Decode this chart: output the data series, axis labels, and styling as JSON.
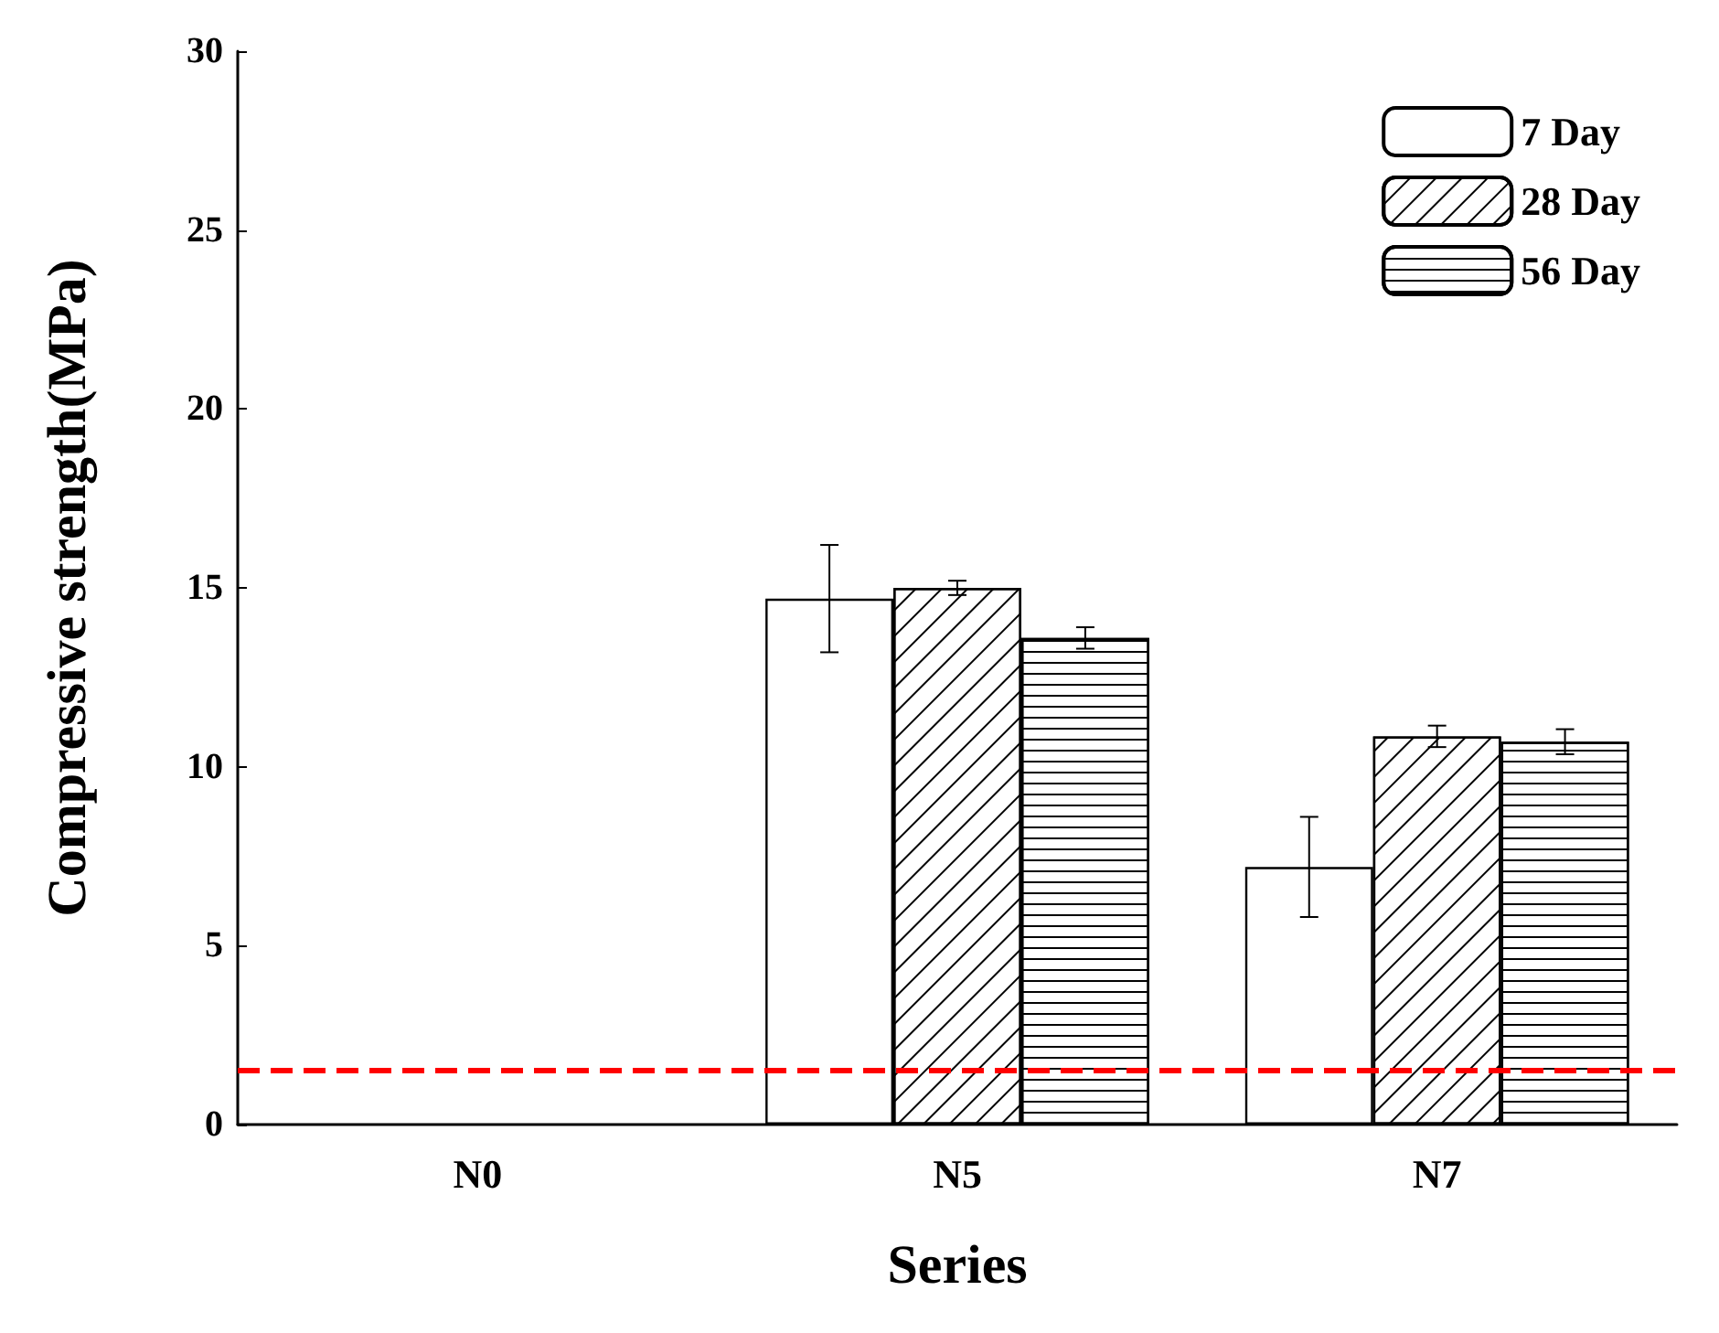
{
  "chart_data": {
    "type": "bar",
    "xlabel": "Series",
    "ylabel": "Compressive strength(MPa)",
    "categories": [
      "N0",
      "N5",
      "N7"
    ],
    "series": [
      {
        "name": "7 Day",
        "color": "#ffffff",
        "values": [
          null,
          14.7,
          7.2
        ],
        "errors": [
          null,
          1.5,
          1.4
        ]
      },
      {
        "name": "28 Day",
        "color": "#ffffff",
        "values": [
          null,
          15.0,
          10.85
        ],
        "errors": [
          null,
          0.2,
          0.3
        ]
      },
      {
        "name": "56 Day",
        "color": "#ffffff",
        "values": [
          null,
          13.6,
          10.7
        ],
        "errors": [
          null,
          0.3,
          0.35
        ]
      }
    ],
    "ylim": [
      0,
      30
    ],
    "yticks": [
      0,
      5,
      10,
      15,
      20,
      25,
      30
    ],
    "grid": false,
    "legend": "top right",
    "ref_lines": [
      {
        "axis": "y",
        "value": 1.5,
        "color": "#ff0000",
        "line_style": "dashed"
      }
    ]
  }
}
